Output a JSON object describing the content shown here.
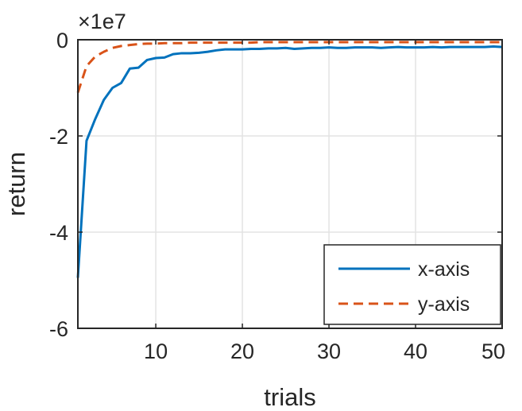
{
  "chart_data": {
    "type": "line",
    "xlabel": "trials",
    "ylabel": "return",
    "y_exponent_label": "×1e7",
    "xlim": [
      1,
      50
    ],
    "ylim": [
      -6,
      0
    ],
    "y_scale_factor": 10000000,
    "grid": true,
    "legend_position": "bottom-right",
    "x_ticks": [
      10,
      20,
      30,
      40,
      50
    ],
    "x_tick_labels": [
      "10",
      "20",
      "30",
      "40",
      "50"
    ],
    "y_ticks": [
      -6,
      -4,
      -2,
      0
    ],
    "y_tick_labels": [
      "-6",
      "-4",
      "-2",
      "0"
    ],
    "x": [
      1,
      2,
      3,
      4,
      5,
      6,
      7,
      8,
      9,
      10,
      11,
      12,
      13,
      14,
      15,
      16,
      17,
      18,
      19,
      20,
      21,
      22,
      23,
      24,
      25,
      26,
      27,
      28,
      29,
      30,
      31,
      32,
      33,
      34,
      35,
      36,
      37,
      38,
      39,
      40,
      41,
      42,
      43,
      44,
      45,
      46,
      47,
      48,
      49,
      50
    ],
    "series": [
      {
        "name": "x-axis",
        "color": "#0072bd",
        "dash": "solid",
        "values": [
          -4.95,
          -2.1,
          -1.65,
          -1.25,
          -1.0,
          -0.9,
          -0.6,
          -0.58,
          -0.42,
          -0.38,
          -0.37,
          -0.3,
          -0.28,
          -0.28,
          -0.27,
          -0.25,
          -0.22,
          -0.2,
          -0.2,
          -0.2,
          -0.19,
          -0.19,
          -0.18,
          -0.18,
          -0.17,
          -0.19,
          -0.18,
          -0.17,
          -0.17,
          -0.16,
          -0.17,
          -0.17,
          -0.16,
          -0.16,
          -0.16,
          -0.17,
          -0.16,
          -0.15,
          -0.16,
          -0.16,
          -0.16,
          -0.15,
          -0.16,
          -0.15,
          -0.15,
          -0.15,
          -0.15,
          -0.15,
          -0.14,
          -0.15
        ]
      },
      {
        "name": "y-axis",
        "color": "#d95319",
        "dash": "dashed",
        "values": [
          -1.1,
          -0.55,
          -0.35,
          -0.25,
          -0.17,
          -0.13,
          -0.11,
          -0.09,
          -0.08,
          -0.08,
          -0.07,
          -0.07,
          -0.07,
          -0.06,
          -0.06,
          -0.06,
          -0.06,
          -0.06,
          -0.06,
          -0.06,
          -0.06,
          -0.05,
          -0.05,
          -0.05,
          -0.05,
          -0.05,
          -0.05,
          -0.05,
          -0.05,
          -0.05,
          -0.05,
          -0.05,
          -0.05,
          -0.05,
          -0.05,
          -0.05,
          -0.05,
          -0.05,
          -0.05,
          -0.05,
          -0.05,
          -0.05,
          -0.05,
          -0.05,
          -0.05,
          -0.05,
          -0.05,
          -0.05,
          -0.05,
          -0.05
        ]
      }
    ]
  }
}
